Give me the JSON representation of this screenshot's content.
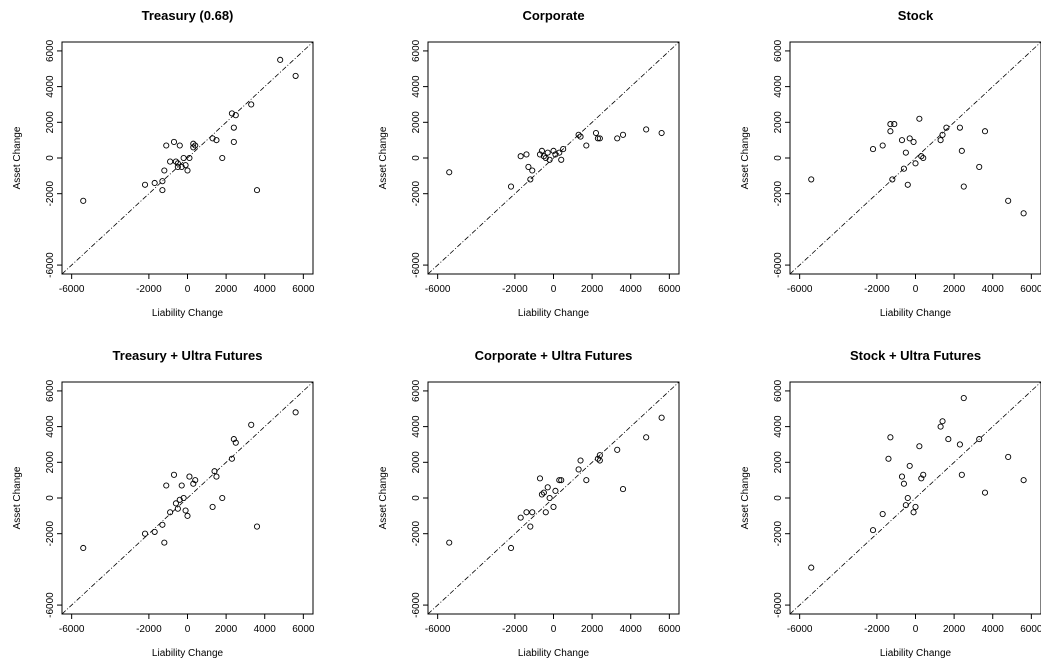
{
  "chart_data": [
    {
      "type": "scatter",
      "title": "Treasury (0.68)",
      "xlabel": "Liability Change",
      "ylabel": "Asset Change",
      "xlim": [
        -6500,
        6500
      ],
      "ylim": [
        -6500,
        6500
      ],
      "xticks": [
        -6000,
        -2000,
        0,
        2000,
        4000,
        6000
      ],
      "yticks": [
        -6000,
        -2000,
        0,
        2000,
        4000,
        6000
      ],
      "reference_line": "y = x (dashed)",
      "grid": false,
      "points": {
        "x": [
          -5400,
          -2200,
          -1700,
          -1300,
          -1300,
          -1200,
          -1100,
          -900,
          -700,
          -600,
          -500,
          -500,
          -400,
          -300,
          -200,
          -100,
          0,
          100,
          300,
          300,
          400,
          1300,
          1500,
          1800,
          2300,
          2400,
          2400,
          2500,
          3300,
          3600,
          4800,
          5600
        ],
        "y": [
          -2400,
          -1500,
          -1400,
          -1800,
          -1300,
          -700,
          700,
          -200,
          900,
          -200,
          -300,
          -500,
          700,
          -500,
          0,
          -400,
          -700,
          0,
          800,
          600,
          700,
          1100,
          1000,
          0,
          2500,
          1700,
          900,
          2400,
          3000,
          -1800,
          5500,
          4600
        ]
      }
    },
    {
      "type": "scatter",
      "title": "Corporate",
      "xlabel": "Liability Change",
      "ylabel": "Asset Change",
      "xlim": [
        -6500,
        6500
      ],
      "ylim": [
        -6500,
        6500
      ],
      "xticks": [
        -6000,
        -2000,
        0,
        2000,
        4000,
        6000
      ],
      "yticks": [
        -6000,
        -2000,
        0,
        2000,
        4000,
        6000
      ],
      "reference_line": "y = x (dashed)",
      "grid": false,
      "points": {
        "x": [
          -5400,
          -2200,
          -1700,
          -1400,
          -1300,
          -1200,
          -1100,
          -700,
          -600,
          -500,
          -400,
          -300,
          -200,
          0,
          100,
          300,
          400,
          500,
          1300,
          1400,
          1700,
          2200,
          2300,
          2400,
          3300,
          3600,
          4800,
          5600
        ],
        "y": [
          -800,
          -1600,
          100,
          200,
          -500,
          -1200,
          -700,
          200,
          400,
          100,
          0,
          300,
          -100,
          400,
          200,
          300,
          -100,
          500,
          1300,
          1200,
          700,
          1400,
          1100,
          1100,
          1100,
          1300,
          1600,
          1400
        ]
      }
    },
    {
      "type": "scatter",
      "title": "Stock",
      "xlabel": "Liability Change",
      "ylabel": "Asset Change",
      "xlim": [
        -6500,
        6500
      ],
      "ylim": [
        -6500,
        6500
      ],
      "xticks": [
        -6000,
        -2000,
        0,
        2000,
        4000,
        6000
      ],
      "yticks": [
        -6000,
        -2000,
        0,
        2000,
        4000,
        6000
      ],
      "reference_line": "y = x (dashed)",
      "grid": false,
      "points": {
        "x": [
          -5400,
          -2200,
          -1700,
          -1300,
          -1300,
          -1200,
          -1100,
          -700,
          -600,
          -500,
          -400,
          -300,
          -100,
          0,
          200,
          300,
          400,
          1300,
          1400,
          1600,
          2300,
          2400,
          2500,
          3300,
          3600,
          4800,
          5600
        ],
        "y": [
          -1200,
          500,
          700,
          1900,
          1500,
          -1200,
          1900,
          1000,
          -600,
          300,
          -1500,
          1100,
          900,
          -300,
          2200,
          100,
          0,
          1000,
          1300,
          1700,
          1700,
          400,
          -1600,
          -500,
          1500,
          -2400,
          -3100
        ]
      }
    },
    {
      "type": "scatter",
      "title": "Treasury + Ultra Futures",
      "xlabel": "Liability Change",
      "ylabel": "Asset Change",
      "xlim": [
        -6500,
        6500
      ],
      "ylim": [
        -6500,
        6500
      ],
      "xticks": [
        -6000,
        -2000,
        0,
        2000,
        4000,
        6000
      ],
      "yticks": [
        -6000,
        -2000,
        0,
        2000,
        4000,
        6000
      ],
      "reference_line": "y = x (dashed)",
      "grid": false,
      "points": {
        "x": [
          -5400,
          -2200,
          -1700,
          -1300,
          -1200,
          -1100,
          -900,
          -700,
          -600,
          -500,
          -400,
          -300,
          -200,
          -100,
          0,
          100,
          300,
          400,
          1300,
          1400,
          1500,
          1800,
          2300,
          2400,
          2500,
          3300,
          3600,
          5600
        ],
        "y": [
          -2800,
          -2000,
          -1900,
          -1500,
          -2500,
          700,
          -800,
          1300,
          -300,
          -600,
          -100,
          700,
          0,
          -700,
          -1000,
          1200,
          800,
          1000,
          -500,
          1500,
          1200,
          0,
          2200,
          3300,
          3100,
          4100,
          -1600,
          4800
        ]
      }
    },
    {
      "type": "scatter",
      "title": "Corporate + Ultra Futures",
      "xlabel": "Liability Change",
      "ylabel": "Asset Change",
      "xlim": [
        -6500,
        6500
      ],
      "ylim": [
        -6500,
        6500
      ],
      "xticks": [
        -6000,
        -2000,
        0,
        2000,
        4000,
        6000
      ],
      "yticks": [
        -6000,
        -2000,
        0,
        2000,
        4000,
        6000
      ],
      "reference_line": "y = x (dashed)",
      "grid": false,
      "points": {
        "x": [
          -5400,
          -2200,
          -1700,
          -1400,
          -1200,
          -1100,
          -700,
          -600,
          -500,
          -400,
          -300,
          -200,
          0,
          100,
          300,
          400,
          1300,
          1400,
          1700,
          2300,
          2400,
          2400,
          3300,
          3600,
          4800,
          5600
        ],
        "y": [
          -2500,
          -2800,
          -1100,
          -800,
          -1600,
          -800,
          1100,
          200,
          300,
          -800,
          600,
          0,
          -500,
          400,
          1000,
          1000,
          1600,
          2100,
          1000,
          2200,
          2100,
          2400,
          2700,
          500,
          3400,
          4500
        ]
      }
    },
    {
      "type": "scatter",
      "title": "Stock + Ultra Futures",
      "xlabel": "Liability Change",
      "ylabel": "Asset Change",
      "xlim": [
        -6500,
        6500
      ],
      "ylim": [
        -6500,
        6500
      ],
      "xticks": [
        -6000,
        -2000,
        0,
        2000,
        4000,
        6000
      ],
      "yticks": [
        -6000,
        -2000,
        0,
        2000,
        4000,
        6000
      ],
      "reference_line": "y = x (dashed)",
      "grid": false,
      "points": {
        "x": [
          -5400,
          -2200,
          -1700,
          -1400,
          -1300,
          -700,
          -600,
          -500,
          -400,
          -300,
          -100,
          0,
          200,
          300,
          400,
          1300,
          1400,
          1700,
          2300,
          2400,
          2500,
          3300,
          3600,
          4800,
          5600
        ],
        "y": [
          -3900,
          -1800,
          -900,
          2200,
          3400,
          1200,
          800,
          -400,
          0,
          1800,
          -800,
          -500,
          2900,
          1100,
          1300,
          4000,
          4300,
          3300,
          3000,
          1300,
          5600,
          3300,
          300,
          2300,
          1000
        ]
      }
    }
  ]
}
